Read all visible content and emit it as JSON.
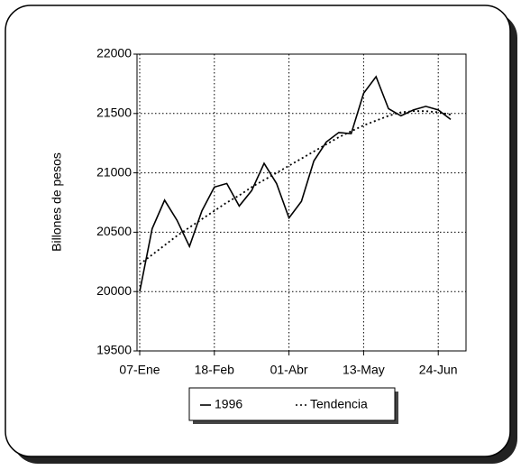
{
  "chart_data": {
    "type": "line",
    "ylabel": "Billones de pesos",
    "categories": [
      "07-Ene",
      null,
      null,
      null,
      null,
      null,
      "18-Feb",
      null,
      null,
      null,
      null,
      null,
      "01-Abr",
      null,
      null,
      null,
      null,
      null,
      "13-May",
      null,
      null,
      null,
      null,
      null,
      "24-Jun",
      null
    ],
    "series": [
      {
        "name": "1996",
        "color": "#000000",
        "dash": "solid",
        "values": [
          20000,
          20530,
          20770,
          20600,
          20380,
          20680,
          20880,
          20910,
          20720,
          20850,
          21080,
          20910,
          20620,
          20760,
          21100,
          21260,
          21340,
          21330,
          21670,
          21810,
          21540,
          21480,
          21530,
          21560,
          21530,
          21450
        ]
      },
      {
        "name": "Tendencia",
        "color": "#000000",
        "dash": "dotted",
        "values": [
          20230,
          20310,
          20390,
          20470,
          20540,
          20610,
          20680,
          20750,
          20810,
          20880,
          20940,
          21000,
          21060,
          21120,
          21180,
          21240,
          21300,
          21350,
          21400,
          21440,
          21480,
          21510,
          21520,
          21520,
          21510,
          21490
        ]
      }
    ],
    "ylim": [
      19500,
      22000
    ],
    "yticks": [
      19500,
      20000,
      20500,
      21000,
      21500,
      22000
    ],
    "grid": true,
    "legend": "bottom"
  }
}
